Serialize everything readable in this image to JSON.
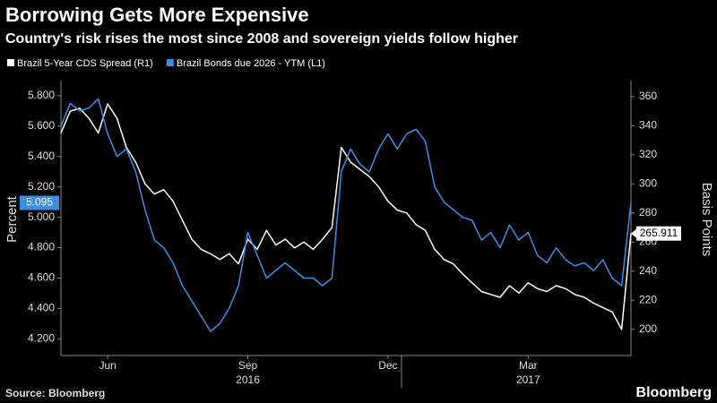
{
  "chart_data": {
    "type": "line",
    "title": "Borrowing Gets More Expensive",
    "subtitle": "Country's risk rises the most since 2008 and sovereign yields follow higher",
    "ylabel": "Percent",
    "y2label": "Basis Points",
    "source": "Source: Bloomberg",
    "brand": "Bloomberg",
    "categories": [
      null,
      null,
      null,
      null,
      null,
      "Jun",
      null,
      null,
      null,
      null,
      null,
      null,
      null,
      null,
      null,
      null,
      null,
      null,
      null,
      null,
      "Sep",
      null,
      null,
      null,
      null,
      null,
      null,
      null,
      null,
      null,
      null,
      null,
      null,
      null,
      null,
      "Dec",
      null,
      null,
      null,
      null,
      null,
      null,
      null,
      null,
      null,
      null,
      null,
      null,
      null,
      null,
      "Mar",
      null,
      null,
      null,
      null,
      null,
      null,
      null,
      null,
      null,
      null,
      null
    ],
    "years": [
      null,
      null,
      null,
      null,
      null,
      null,
      null,
      null,
      null,
      null,
      null,
      null,
      null,
      null,
      null,
      null,
      null,
      null,
      null,
      null,
      "2016",
      null,
      null,
      null,
      null,
      null,
      null,
      null,
      null,
      null,
      null,
      null,
      null,
      null,
      null,
      null,
      null,
      null,
      null,
      null,
      null,
      null,
      null,
      null,
      null,
      null,
      null,
      null,
      null,
      null,
      "2017",
      null,
      null,
      null,
      null,
      null,
      null,
      null,
      null,
      null,
      null,
      null
    ],
    "ylim": [
      4.09,
      5.9
    ],
    "yticks": [
      {
        "value": 4.2,
        "label": "4.200"
      },
      {
        "value": 4.4,
        "label": "4.400"
      },
      {
        "value": 4.6,
        "label": "4.600"
      },
      {
        "value": 4.8,
        "label": "4.800"
      },
      {
        "value": 5.0,
        "label": "5.000"
      },
      {
        "value": 5.2,
        "label": "5.200"
      },
      {
        "value": 5.4,
        "label": "5.400"
      },
      {
        "value": 5.6,
        "label": "5.600"
      },
      {
        "value": 5.8,
        "label": "5.800"
      }
    ],
    "y2lim": [
      182,
      371
    ],
    "y2ticks": [
      200,
      220,
      240,
      260,
      280,
      300,
      320,
      340,
      360
    ],
    "grid": false,
    "series": [
      {
        "name": "Brazil 5-Year CDS Spread (R1)",
        "color": "#ffffff",
        "axis": "y2",
        "values": [
          335,
          350,
          352,
          345,
          335,
          355,
          345,
          325,
          315,
          300,
          293,
          296,
          288,
          275,
          262,
          255,
          252,
          248,
          252,
          245,
          262,
          255,
          268,
          258,
          262,
          256,
          260,
          255,
          262,
          270,
          325,
          315,
          310,
          305,
          298,
          288,
          282,
          280,
          272,
          268,
          255,
          248,
          245,
          238,
          232,
          226,
          224,
          222,
          230,
          225,
          232,
          228,
          226,
          230,
          228,
          224,
          222,
          218,
          215,
          212,
          200,
          265.911
        ]
      },
      {
        "name": "Brazil Bonds due 2026 - YTM  (L1)",
        "color": "#3b8fe3",
        "axis": "y",
        "values": [
          5.6,
          5.75,
          5.7,
          5.72,
          5.78,
          5.55,
          5.4,
          5.45,
          5.3,
          5.05,
          4.85,
          4.8,
          4.7,
          4.55,
          4.45,
          4.35,
          4.25,
          4.3,
          4.4,
          4.55,
          4.9,
          4.75,
          4.6,
          4.65,
          4.7,
          4.65,
          4.6,
          4.6,
          4.55,
          4.6,
          5.3,
          5.45,
          5.35,
          5.3,
          5.45,
          5.55,
          5.45,
          5.55,
          5.58,
          5.5,
          5.2,
          5.1,
          5.05,
          5.0,
          4.98,
          4.85,
          4.9,
          4.8,
          4.95,
          4.85,
          4.9,
          4.75,
          4.7,
          4.8,
          4.72,
          4.68,
          4.7,
          4.65,
          4.72,
          4.6,
          4.55,
          5.095
        ]
      }
    ]
  }
}
